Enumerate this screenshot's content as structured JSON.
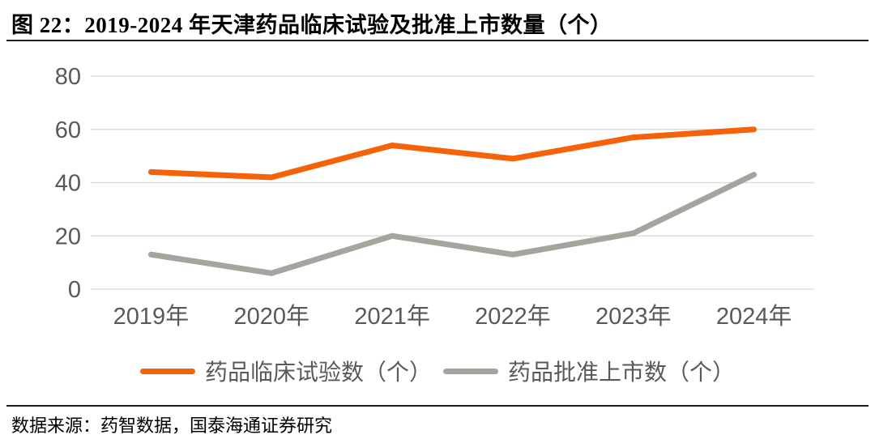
{
  "figure": {
    "title": "图 22：2019-2024 年天津药品临床试验及批准上市数量（个）",
    "source": "数据来源：药智数据，国泰海通证券研究"
  },
  "chart_data": {
    "type": "line",
    "title": "2019-2024 年天津药品临床试验及批准上市数量（个）",
    "categories": [
      "2019年",
      "2020年",
      "2021年",
      "2022年",
      "2023年",
      "2024年"
    ],
    "series": [
      {
        "name": "药品临床试验数（个）",
        "color": "#F76209",
        "values": [
          44,
          42,
          54,
          49,
          57,
          60
        ]
      },
      {
        "name": "药品批准上市数（个）",
        "color": "#A7A49F",
        "values": [
          13,
          6,
          20,
          13,
          21,
          43
        ]
      }
    ],
    "xlabel": "",
    "ylabel": "",
    "ylim": [
      0,
      80
    ],
    "yticks": [
      0,
      20,
      40,
      60,
      80
    ],
    "grid": true,
    "legend_position": "bottom",
    "styles": {
      "gridline_color": "#DDDDDD",
      "tick_label_color": "#595959",
      "line_width": 7
    }
  }
}
